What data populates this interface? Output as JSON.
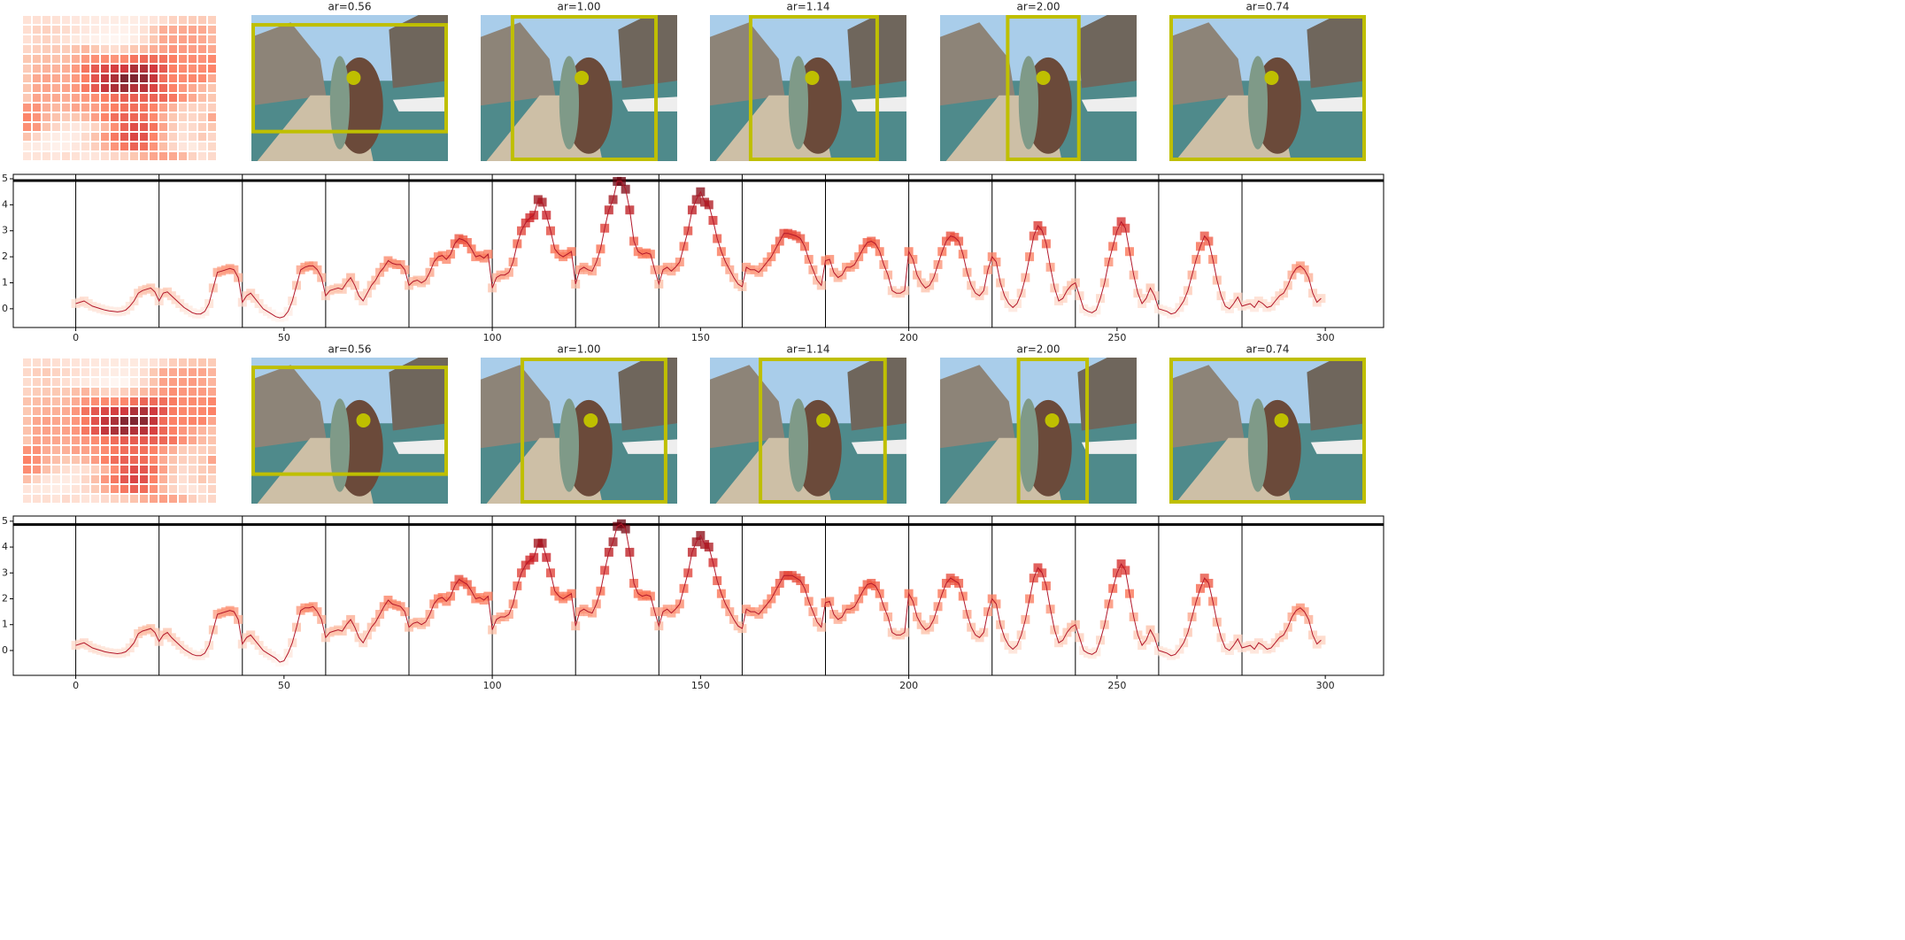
{
  "chart_data": [
    {
      "type": "line",
      "color": "#b2182b",
      "colormap": "Reds",
      "box_color": "#bfbf00",
      "heatmap_cols": 20,
      "panels": [
        {
          "title": "ar=0.56",
          "box": [
            0,
            0.055,
            1,
            0.81
          ],
          "point": [
            0.52,
            0.43
          ]
        },
        {
          "title": "ar=1.00",
          "box": [
            0.153,
            0,
            0.901,
            1
          ],
          "point": [
            0.514,
            0.43
          ]
        },
        {
          "title": "ar=1.14",
          "box": [
            0.198,
            0,
            0.86,
            1
          ],
          "point": [
            0.52,
            0.43
          ]
        },
        {
          "title": "ar=2.00",
          "box": [
            0.335,
            0,
            0.715,
            1
          ],
          "point": [
            0.525,
            0.43
          ]
        },
        {
          "title": "ar=0.74",
          "box": [
            0,
            0,
            1,
            1
          ],
          "point": [
            0.52,
            0.43
          ]
        }
      ],
      "values": [
        0.2,
        0.25,
        0.3,
        0.2,
        0.1,
        0.05,
        0,
        -0.05,
        -0.08,
        -0.1,
        -0.12,
        -0.1,
        -0.05,
        0.1,
        0.3,
        0.6,
        0.7,
        0.75,
        0.8,
        0.65,
        0.3,
        0.6,
        0.65,
        0.5,
        0.35,
        0.2,
        0.05,
        -0.05,
        -0.15,
        -0.2,
        -0.2,
        -0.1,
        0.2,
        0.8,
        1.4,
        1.45,
        1.5,
        1.55,
        1.5,
        1.2,
        0.25,
        0.5,
        0.6,
        0.4,
        0.2,
        0,
        -0.1,
        -0.2,
        -0.3,
        -0.35,
        -0.3,
        -0.1,
        0.3,
        0.9,
        1.5,
        1.6,
        1.65,
        1.65,
        1.5,
        1.2,
        0.5,
        0.7,
        0.75,
        0.8,
        0.75,
        1,
        1.2,
        0.9,
        0.5,
        0.3,
        0.6,
        0.9,
        1.1,
        1.4,
        1.6,
        1.85,
        1.75,
        1.7,
        1.7,
        1.5,
        0.9,
        1.05,
        1.1,
        1,
        1.1,
        1.4,
        1.8,
        2,
        2.05,
        1.9,
        2.1,
        2.5,
        2.7,
        2.65,
        2.55,
        2.3,
        2,
        2.05,
        1.95,
        2.1,
        0.8,
        1.2,
        1.3,
        1.3,
        1.4,
        1.8,
        2.5,
        3,
        3.3,
        3.5,
        3.6,
        4.2,
        4.1,
        3.6,
        3,
        2.3,
        2.1,
        2,
        2.1,
        2.2,
        0.95,
        1.5,
        1.6,
        1.5,
        1.45,
        1.8,
        2.3,
        3.1,
        3.8,
        4.2,
        4.9,
        4.9,
        4.6,
        3.8,
        2.6,
        2.2,
        2.1,
        2.15,
        2.1,
        1.5,
        0.95,
        1.5,
        1.6,
        1.45,
        1.6,
        1.8,
        2.4,
        3,
        3.8,
        4.2,
        4.5,
        4.1,
        4,
        3.4,
        2.7,
        2.2,
        1.8,
        1.5,
        1.2,
        0.95,
        0.85,
        1.6,
        1.5,
        1.5,
        1.4,
        1.6,
        1.8,
        2,
        2.3,
        2.6,
        2.9,
        2.9,
        2.85,
        2.8,
        2.7,
        2.4,
        1.9,
        1.5,
        1.1,
        0.9,
        1.85,
        1.9,
        1.4,
        1.2,
        1.3,
        1.6,
        1.6,
        1.7,
        2,
        2.3,
        2.55,
        2.6,
        2.5,
        2.2,
        1.7,
        1.3,
        0.7,
        0.6,
        0.6,
        0.7,
        2.2,
        1.9,
        1.3,
        1,
        0.8,
        0.9,
        1.2,
        1.7,
        2.2,
        2.6,
        2.8,
        2.75,
        2.6,
        2.1,
        1.4,
        0.9,
        0.6,
        0.5,
        0.7,
        1.5,
        2,
        1.8,
        1,
        0.5,
        0.2,
        0.05,
        0.2,
        0.6,
        1.2,
        2,
        2.8,
        3.2,
        3,
        2.5,
        1.6,
        0.8,
        0.3,
        0.4,
        0.7,
        0.9,
        1,
        0.5,
        0,
        -0.1,
        -0.15,
        -0.05,
        0.4,
        1,
        1.8,
        2.4,
        3,
        3.35,
        3.1,
        2.2,
        1.3,
        0.6,
        0.2,
        0.4,
        0.8,
        0.5,
        0,
        -0.05,
        -0.1,
        -0.2,
        -0.15,
        0.05,
        0.3,
        0.7,
        1.3,
        1.9,
        2.4,
        2.8,
        2.6,
        1.9,
        1.1,
        0.5,
        0.1,
        0,
        0.2,
        0.45,
        0.1,
        0.15,
        0.2,
        0.05,
        0.3,
        0.2,
        0.05,
        0.1,
        0.3,
        0.5,
        0.6,
        0.9,
        1.3,
        1.55,
        1.65,
        1.5,
        1.2,
        0.6,
        0.25,
        0.4
      ],
      "xlim": [
        -15,
        314
      ],
      "ylim": [
        -0.72,
        5.17
      ],
      "xticks": [
        0,
        50,
        100,
        150,
        200,
        250,
        300
      ],
      "yticks": [
        0,
        1,
        2,
        3,
        4,
        5
      ],
      "vlines": [
        0,
        20,
        40,
        60,
        80,
        100,
        120,
        140,
        160,
        180,
        200,
        220,
        240,
        260,
        280
      ],
      "hline": 4.93
    },
    {
      "type": "line",
      "color": "#b2182b",
      "colormap": "Reds",
      "box_color": "#bfbf00",
      "heatmap_cols": 20,
      "panels": [
        {
          "title": "ar=0.56",
          "box": [
            0,
            0.055,
            1,
            0.81
          ],
          "point": [
            0.57,
            0.43
          ]
        },
        {
          "title": "ar=1.00",
          "box": [
            0.203,
            0,
            0.95,
            1
          ],
          "point": [
            0.56,
            0.43
          ]
        },
        {
          "title": "ar=1.14",
          "box": [
            0.248,
            0,
            0.9,
            1
          ],
          "point": [
            0.577,
            0.43
          ]
        },
        {
          "title": "ar=2.00",
          "box": [
            0.39,
            0,
            0.757,
            1
          ],
          "point": [
            0.57,
            0.43
          ]
        },
        {
          "title": "ar=0.74",
          "box": [
            0,
            0,
            1,
            1
          ],
          "point": [
            0.57,
            0.43
          ]
        }
      ],
      "values": [
        0.2,
        0.25,
        0.3,
        0.2,
        0.1,
        0.05,
        0,
        -0.05,
        -0.08,
        -0.1,
        -0.12,
        -0.1,
        -0.05,
        0.1,
        0.3,
        0.65,
        0.75,
        0.8,
        0.85,
        0.7,
        0.35,
        0.6,
        0.7,
        0.5,
        0.35,
        0.2,
        0.05,
        -0.05,
        -0.15,
        -0.2,
        -0.2,
        -0.1,
        0.2,
        0.8,
        1.4,
        1.45,
        1.5,
        1.55,
        1.5,
        1.2,
        0.25,
        0.5,
        0.6,
        0.4,
        0.2,
        0,
        -0.1,
        -0.2,
        -0.3,
        -0.45,
        -0.4,
        -0.1,
        0.3,
        0.9,
        1.55,
        1.65,
        1.65,
        1.7,
        1.5,
        1.2,
        0.5,
        0.7,
        0.75,
        0.8,
        0.75,
        1,
        1.2,
        0.9,
        0.5,
        0.3,
        0.6,
        0.9,
        1.1,
        1.4,
        1.7,
        1.95,
        1.8,
        1.75,
        1.7,
        1.5,
        0.9,
        1.05,
        1.1,
        1,
        1.1,
        1.4,
        1.8,
        2,
        2.05,
        1.9,
        2.1,
        2.5,
        2.75,
        2.65,
        2.55,
        2.3,
        2,
        2.05,
        1.95,
        2.1,
        0.8,
        1.2,
        1.3,
        1.3,
        1.4,
        1.8,
        2.5,
        3,
        3.3,
        3.5,
        3.6,
        4.15,
        4.15,
        3.6,
        3,
        2.3,
        2.1,
        2,
        2.1,
        2.2,
        0.95,
        1.5,
        1.6,
        1.5,
        1.45,
        1.8,
        2.3,
        3.1,
        3.8,
        4.2,
        4.8,
        4.9,
        4.7,
        3.8,
        2.6,
        2.2,
        2.1,
        2.15,
        2.1,
        1.5,
        0.95,
        1.5,
        1.6,
        1.45,
        1.6,
        1.8,
        2.4,
        3,
        3.8,
        4.2,
        4.45,
        4.1,
        4,
        3.4,
        2.7,
        2.2,
        1.8,
        1.5,
        1.2,
        0.95,
        0.85,
        1.6,
        1.5,
        1.5,
        1.4,
        1.6,
        1.8,
        2,
        2.3,
        2.6,
        2.9,
        2.9,
        2.9,
        2.8,
        2.7,
        2.4,
        1.9,
        1.5,
        1.1,
        0.9,
        1.85,
        1.9,
        1.4,
        1.2,
        1.3,
        1.6,
        1.6,
        1.7,
        2,
        2.3,
        2.55,
        2.6,
        2.5,
        2.2,
        1.7,
        1.3,
        0.7,
        0.6,
        0.6,
        0.7,
        2.2,
        1.9,
        1.3,
        1,
        0.8,
        0.9,
        1.2,
        1.7,
        2.2,
        2.6,
        2.8,
        2.7,
        2.6,
        2.1,
        1.4,
        0.9,
        0.6,
        0.5,
        0.7,
        1.5,
        2,
        1.8,
        1,
        0.5,
        0.2,
        0.05,
        0.2,
        0.6,
        1.2,
        2,
        2.8,
        3.2,
        3,
        2.5,
        1.6,
        0.8,
        0.3,
        0.4,
        0.7,
        0.9,
        1,
        0.5,
        0,
        -0.1,
        -0.15,
        -0.05,
        0.4,
        1,
        1.8,
        2.4,
        3,
        3.35,
        3.1,
        2.2,
        1.3,
        0.6,
        0.2,
        0.4,
        0.8,
        0.5,
        0,
        -0.05,
        -0.1,
        -0.2,
        -0.15,
        0.05,
        0.3,
        0.7,
        1.3,
        1.9,
        2.4,
        2.8,
        2.6,
        1.9,
        1.1,
        0.5,
        0.1,
        0,
        0.2,
        0.45,
        0.1,
        0.15,
        0.2,
        0.05,
        0.3,
        0.2,
        0.05,
        0.1,
        0.3,
        0.5,
        0.6,
        0.9,
        1.3,
        1.55,
        1.65,
        1.5,
        1.2,
        0.6,
        0.25,
        0.4
      ],
      "xlim": [
        -15,
        314
      ],
      "ylim": [
        -0.96,
        5.2
      ],
      "xticks": [
        0,
        50,
        100,
        150,
        200,
        250,
        300
      ],
      "yticks": [
        0,
        1,
        2,
        3,
        4,
        5
      ],
      "vlines": [
        0,
        20,
        40,
        60,
        80,
        100,
        120,
        140,
        160,
        180,
        200,
        220,
        240,
        260,
        280
      ],
      "hline": 4.87
    }
  ]
}
